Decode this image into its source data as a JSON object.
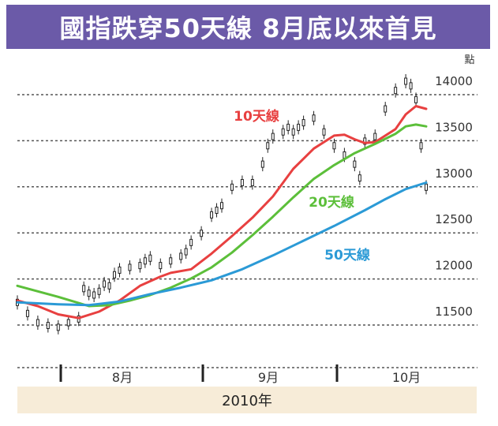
{
  "chart_data": {
    "type": "line",
    "title": "國指跌穿50天線 8月底以來首見",
    "ylabel": "點",
    "ylim": [
      11000,
      14200
    ],
    "y_ticks": [
      11500,
      12000,
      12500,
      13000,
      13500,
      14000
    ],
    "x_month_labels": [
      "8月",
      "9月",
      "10月"
    ],
    "x_year_label": "2010年",
    "grid": true,
    "series": [
      {
        "name": "10天線",
        "color": "#e84040",
        "x": [
          0,
          4,
          8,
          12,
          16,
          20,
          24,
          28,
          30,
          34,
          38,
          42,
          46,
          50,
          54,
          58,
          62,
          64,
          66,
          68,
          70,
          74,
          76,
          78,
          80
        ],
        "values": [
          11620,
          11560,
          11470,
          11430,
          11500,
          11620,
          11780,
          11880,
          11920,
          11960,
          12130,
          12320,
          12520,
          12750,
          13050,
          13270,
          13410,
          13420,
          13370,
          13330,
          13340,
          13480,
          13640,
          13730,
          13700
        ]
      },
      {
        "name": "20天線",
        "color": "#5cbf3a",
        "x": [
          0,
          8,
          14,
          18,
          22,
          26,
          30,
          34,
          38,
          42,
          46,
          50,
          54,
          58,
          62,
          66,
          70,
          74,
          76,
          78,
          80
        ],
        "values": [
          11780,
          11660,
          11560,
          11570,
          11620,
          11680,
          11760,
          11860,
          11980,
          12140,
          12330,
          12530,
          12740,
          12940,
          13090,
          13220,
          13320,
          13430,
          13510,
          13530,
          13510
        ]
      },
      {
        "name": "50天線",
        "color": "#2b9ad6",
        "x": [
          0,
          8,
          14,
          20,
          26,
          32,
          38,
          44,
          50,
          56,
          62,
          68,
          72,
          76,
          80
        ],
        "values": [
          11600,
          11580,
          11570,
          11610,
          11690,
          11760,
          11840,
          11960,
          12110,
          12270,
          12430,
          12600,
          12720,
          12830,
          12900
        ]
      }
    ],
    "candles": {
      "x": [
        0,
        2,
        4,
        6,
        8,
        10,
        12,
        13,
        14,
        15,
        16,
        17,
        18,
        19,
        20,
        22,
        24,
        25,
        26,
        28,
        30,
        32,
        33,
        34,
        36,
        38,
        39,
        40,
        42,
        44,
        46,
        48,
        49,
        50,
        52,
        53,
        54,
        55,
        56,
        58,
        60,
        62,
        64,
        66,
        67,
        68,
        70,
        72,
        74,
        76,
        77,
        78,
        79,
        80
      ],
      "values": [
        11600,
        11480,
        11380,
        11350,
        11330,
        11380,
        11420,
        11750,
        11700,
        11680,
        11720,
        11800,
        11780,
        11900,
        11950,
        11980,
        12000,
        12050,
        12080,
        12000,
        12050,
        12100,
        12150,
        12250,
        12350,
        12550,
        12600,
        12650,
        12850,
        12900,
        12900,
        13100,
        13300,
        13400,
        13450,
        13500,
        13450,
        13500,
        13550,
        13600,
        13450,
        13300,
        13200,
        13100,
        12950,
        13350,
        13400,
        13700,
        13900,
        14000,
        13950,
        13800,
        13300,
        12850
      ]
    }
  },
  "legend_labels": {
    "ma10": "10天線",
    "ma20": "20天線",
    "ma50": "50天線"
  }
}
